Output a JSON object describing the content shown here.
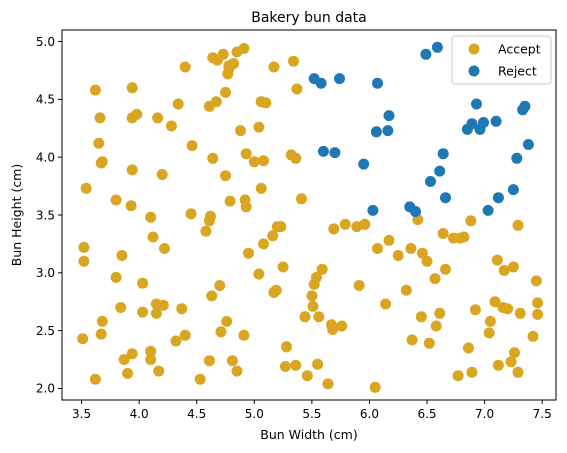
{
  "chart_data": {
    "type": "scatter",
    "title": "Bakery bun data",
    "xlabel": "Bun Width (cm)",
    "ylabel": "Bun Height (cm)",
    "xlim": [
      3.33,
      7.62
    ],
    "ylim": [
      1.9,
      5.1
    ],
    "xticks": [
      3.5,
      4.0,
      4.5,
      5.0,
      5.5,
      6.0,
      6.5,
      7.0,
      7.5
    ],
    "yticks": [
      2.0,
      2.5,
      3.0,
      3.5,
      4.0,
      4.5,
      5.0
    ],
    "xtick_labels": [
      "3.5",
      "4.0",
      "4.5",
      "5.0",
      "5.5",
      "6.0",
      "6.5",
      "7.0",
      "7.5"
    ],
    "ytick_labels": [
      "2.0",
      "2.5",
      "3.0",
      "3.5",
      "4.0",
      "4.5",
      "5.0"
    ],
    "grid": false,
    "legend_position": "top-right",
    "series": [
      {
        "name": "Accept",
        "color": "#DAA520",
        "points": [
          [
            3.51,
            2.43
          ],
          [
            3.52,
            3.22
          ],
          [
            3.52,
            3.1
          ],
          [
            3.54,
            3.73
          ],
          [
            3.62,
            2.08
          ],
          [
            3.62,
            4.58
          ],
          [
            3.65,
            4.12
          ],
          [
            3.66,
            4.34
          ],
          [
            3.67,
            2.47
          ],
          [
            3.67,
            3.95
          ],
          [
            3.68,
            3.96
          ],
          [
            3.68,
            2.58
          ],
          [
            3.8,
            3.63
          ],
          [
            3.8,
            2.96
          ],
          [
            3.84,
            2.7
          ],
          [
            3.85,
            3.15
          ],
          [
            3.87,
            2.25
          ],
          [
            3.9,
            2.13
          ],
          [
            3.93,
            3.58
          ],
          [
            3.94,
            2.3
          ],
          [
            3.94,
            4.6
          ],
          [
            3.94,
            3.89
          ],
          [
            3.94,
            4.34
          ],
          [
            3.98,
            4.37
          ],
          [
            4.03,
            2.91
          ],
          [
            4.03,
            2.66
          ],
          [
            4.1,
            2.25
          ],
          [
            4.1,
            2.32
          ],
          [
            4.1,
            3.48
          ],
          [
            4.12,
            3.31
          ],
          [
            4.15,
            2.73
          ],
          [
            4.15,
            2.65
          ],
          [
            4.16,
            4.34
          ],
          [
            4.17,
            2.15
          ],
          [
            4.2,
            3.85
          ],
          [
            4.21,
            2.72
          ],
          [
            4.22,
            3.21
          ],
          [
            4.28,
            4.27
          ],
          [
            4.32,
            2.41
          ],
          [
            4.34,
            4.46
          ],
          [
            4.37,
            2.69
          ],
          [
            4.4,
            4.78
          ],
          [
            4.4,
            2.46
          ],
          [
            4.45,
            3.51
          ],
          [
            4.46,
            4.1
          ],
          [
            4.53,
            2.08
          ],
          [
            4.58,
            3.36
          ],
          [
            4.61,
            2.24
          ],
          [
            4.61,
            3.45
          ],
          [
            4.61,
            4.44
          ],
          [
            4.62,
            3.49
          ],
          [
            4.63,
            2.8
          ],
          [
            4.64,
            4.86
          ],
          [
            4.64,
            3.99
          ],
          [
            4.67,
            4.48
          ],
          [
            4.68,
            4.84
          ],
          [
            4.7,
            2.89
          ],
          [
            4.71,
            2.49
          ],
          [
            4.73,
            4.89
          ],
          [
            4.75,
            3.84
          ],
          [
            4.75,
            4.56
          ],
          [
            4.76,
            2.58
          ],
          [
            4.77,
            4.72
          ],
          [
            4.78,
            4.77
          ],
          [
            4.78,
            4.79
          ],
          [
            4.79,
            3.62
          ],
          [
            4.81,
            2.24
          ],
          [
            4.82,
            4.81
          ],
          [
            4.85,
            2.15
          ],
          [
            4.85,
            4.91
          ],
          [
            4.88,
            4.23
          ],
          [
            4.91,
            2.46
          ],
          [
            4.91,
            4.94
          ],
          [
            4.92,
            3.63
          ],
          [
            4.93,
            4.03
          ],
          [
            4.93,
            3.57
          ],
          [
            4.95,
            3.17
          ],
          [
            5.0,
            3.96
          ],
          [
            5.04,
            4.26
          ],
          [
            5.04,
            2.99
          ],
          [
            5.06,
            3.73
          ],
          [
            5.06,
            4.48
          ],
          [
            5.08,
            3.97
          ],
          [
            5.08,
            3.25
          ],
          [
            5.1,
            4.47
          ],
          [
            5.16,
            3.32
          ],
          [
            5.17,
            4.78
          ],
          [
            5.17,
            2.83
          ],
          [
            5.19,
            2.85
          ],
          [
            5.2,
            3.4
          ],
          [
            5.23,
            3.4
          ],
          [
            5.25,
            3.05
          ],
          [
            5.27,
            2.19
          ],
          [
            5.28,
            2.36
          ],
          [
            5.32,
            4.02
          ],
          [
            5.34,
            4.83
          ],
          [
            5.36,
            2.2
          ],
          [
            5.36,
            3.99
          ],
          [
            5.37,
            4.59
          ],
          [
            5.41,
            3.64
          ],
          [
            5.44,
            2.62
          ],
          [
            5.46,
            2.11
          ],
          [
            5.5,
            2.8
          ],
          [
            5.51,
            2.71
          ],
          [
            5.52,
            2.9
          ],
          [
            5.54,
            2.96
          ],
          [
            5.55,
            2.21
          ],
          [
            5.56,
            2.62
          ],
          [
            5.59,
            3.03
          ],
          [
            5.64,
            2.04
          ],
          [
            5.67,
            2.55
          ],
          [
            5.68,
            2.51
          ],
          [
            5.69,
            3.38
          ],
          [
            5.76,
            2.54
          ],
          [
            5.79,
            3.42
          ],
          [
            5.89,
            3.4
          ],
          [
            5.91,
            2.89
          ],
          [
            5.96,
            3.42
          ],
          [
            6.05,
            2.01
          ],
          [
            6.07,
            3.21
          ],
          [
            6.14,
            2.73
          ],
          [
            6.17,
            3.28
          ],
          [
            6.25,
            3.15
          ],
          [
            6.32,
            2.85
          ],
          [
            6.36,
            3.21
          ],
          [
            6.37,
            2.42
          ],
          [
            6.42,
            3.46
          ],
          [
            6.45,
            2.62
          ],
          [
            6.46,
            3.17
          ],
          [
            6.5,
            3.1
          ],
          [
            6.52,
            2.39
          ],
          [
            6.57,
            2.95
          ],
          [
            6.58,
            2.54
          ],
          [
            6.61,
            2.65
          ],
          [
            6.64,
            3.34
          ],
          [
            6.66,
            3.03
          ],
          [
            6.73,
            3.3
          ],
          [
            6.77,
            2.11
          ],
          [
            6.79,
            3.3
          ],
          [
            6.82,
            3.31
          ],
          [
            6.86,
            2.35
          ],
          [
            6.88,
            3.45
          ],
          [
            6.89,
            2.14
          ],
          [
            6.92,
            2.68
          ],
          [
            7.04,
            2.48
          ],
          [
            7.05,
            2.58
          ],
          [
            7.09,
            2.75
          ],
          [
            7.11,
            3.11
          ],
          [
            7.12,
            2.2
          ],
          [
            7.16,
            2.7
          ],
          [
            7.17,
            3.02
          ],
          [
            7.2,
            2.69
          ],
          [
            7.23,
            2.23
          ],
          [
            7.25,
            3.05
          ],
          [
            7.26,
            2.31
          ],
          [
            7.29,
            2.14
          ],
          [
            7.29,
            3.41
          ],
          [
            7.31,
            2.65
          ],
          [
            7.42,
            2.45
          ],
          [
            7.45,
            2.93
          ],
          [
            7.46,
            2.64
          ],
          [
            7.46,
            2.74
          ]
        ]
      },
      {
        "name": "Reject",
        "color": "#1F77B4",
        "points": [
          [
            5.52,
            4.68
          ],
          [
            5.58,
            4.64
          ],
          [
            5.6,
            4.05
          ],
          [
            5.7,
            4.04
          ],
          [
            5.74,
            4.68
          ],
          [
            5.95,
            3.94
          ],
          [
            6.03,
            3.54
          ],
          [
            6.06,
            4.22
          ],
          [
            6.07,
            4.64
          ],
          [
            6.16,
            4.23
          ],
          [
            6.17,
            4.36
          ],
          [
            6.35,
            3.57
          ],
          [
            6.4,
            3.53
          ],
          [
            6.49,
            4.89
          ],
          [
            6.53,
            3.79
          ],
          [
            6.59,
            4.95
          ],
          [
            6.61,
            3.88
          ],
          [
            6.64,
            4.03
          ],
          [
            6.66,
            3.65
          ],
          [
            6.85,
            4.24
          ],
          [
            6.89,
            4.29
          ],
          [
            6.93,
            4.46
          ],
          [
            6.96,
            4.24
          ],
          [
            6.99,
            4.3
          ],
          [
            7.03,
            3.54
          ],
          [
            7.1,
            4.31
          ],
          [
            7.12,
            3.65
          ],
          [
            7.25,
            3.72
          ],
          [
            7.28,
            3.99
          ],
          [
            7.33,
            4.41
          ],
          [
            7.35,
            4.44
          ],
          [
            7.38,
            4.11
          ]
        ]
      }
    ]
  }
}
